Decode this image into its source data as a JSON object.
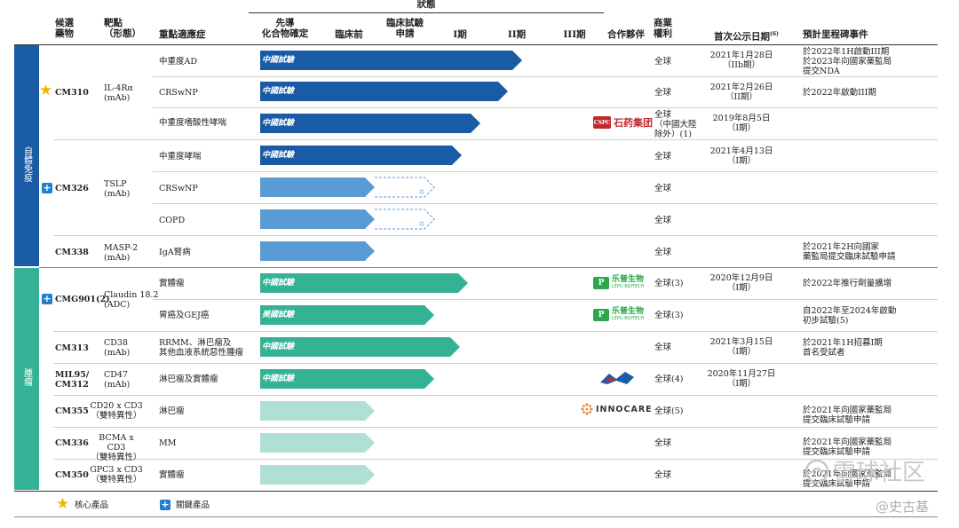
{
  "header": {
    "status": "狀態",
    "candidate": "候選\n藥物",
    "target": "靶點\n（形態）",
    "indication": "重點適應症",
    "lead": "先導\n化合物確定",
    "preclinical": "臨床前",
    "ind": "臨床試驗\n申請",
    "phase1": "I期",
    "phase2": "II期",
    "phase3": "III期",
    "partner": "合作夥伴",
    "rights": "商業\n權利",
    "first_date": "首次公示日期",
    "first_date_note": "(6)",
    "milestone": "預計里程碑事件"
  },
  "sections": [
    {
      "label": "自體免疫",
      "color": "#1a5ba6"
    },
    {
      "label": "腫瘤",
      "color": "#35b295"
    }
  ],
  "rows": [
    {
      "candidate": "",
      "target": "",
      "indication": "中重度AD",
      "bar_label": "中國試驗",
      "rights": "全球",
      "date": "2021年1月28日\n（IIb期）",
      "milestone": "於2022年1H啟動III期\n於2023年向國家藥監局\n提交NDA"
    },
    {
      "candidate": "CM310",
      "target": "IL-4Rα\n(mAb)",
      "indication": "CRSwNP",
      "bar_label": "中國試驗",
      "rights": "全球",
      "date": "2021年2月26日\n（II期）",
      "milestone": "於2022年啟動III期"
    },
    {
      "candidate": "",
      "target": "",
      "indication": "中重度嗜酸性哮喘",
      "bar_label": "中國試驗",
      "rights": "全球\n（中國大陸\n除外）(1)",
      "date": "2019年8月5日\n（I期）",
      "milestone": ""
    },
    {
      "candidate": "",
      "target": "",
      "indication": "中重度哮喘",
      "bar_label": "中國試驗",
      "rights": "全球",
      "date": "2021年4月13日\n（I期）",
      "milestone": ""
    },
    {
      "candidate": "CM326",
      "target": "TSLP\n(mAb)",
      "indication": "CRSwNP",
      "bar_label": "",
      "rights": "全球",
      "date": "",
      "milestone": ""
    },
    {
      "candidate": "",
      "target": "",
      "indication": "COPD",
      "bar_label": "",
      "rights": "全球",
      "date": "",
      "milestone": ""
    },
    {
      "candidate": "CM338",
      "target": "MASP-2\n(mAb)",
      "indication": "IgA腎病",
      "bar_label": "",
      "rights": "全球",
      "date": "",
      "milestone": "於2021年2H向國家\n藥監局提交臨床試驗申請"
    },
    {
      "candidate": "",
      "target": "",
      "indication": "實體瘤",
      "bar_label": "中國試驗",
      "rights": "全球(3)",
      "date": "2020年12月9日\n（I期）",
      "milestone": "於2022年推行劑量擴增"
    },
    {
      "candidate": "CMG901(2)",
      "target": "Claudin 18.2\n(ADC)",
      "indication": "胃癌及GEJ癌",
      "bar_label": "美國試驗",
      "rights": "全球(3)",
      "date": "",
      "milestone": "自2022年至2024年啟動\n初步試驗(5)"
    },
    {
      "candidate": "CM313",
      "target": "CD38\n(mAb)",
      "indication": "RRMM、淋巴瘤及\n其他血液系統惡性腫瘤",
      "bar_label": "中國試驗",
      "rights": "全球",
      "date": "2021年3月15日\n（I期）",
      "milestone": "於2021年1H招募I期\n首名受試者"
    },
    {
      "candidate": "MIL95/\nCM312",
      "target": "CD47\n(mAb)",
      "indication": "淋巴瘤及實體瘤",
      "bar_label": "中國試驗",
      "rights": "全球(4)",
      "date": "2020年11月27日\n（I期）",
      "milestone": ""
    },
    {
      "candidate": "CM355",
      "target": "CD20 x CD3\n（雙特異性）",
      "indication": "淋巴瘤",
      "bar_label": "",
      "rights": "全球(5)",
      "date": "",
      "milestone": "於2021年向國家藥監局\n提交臨床試驗申請"
    },
    {
      "candidate": "CM336",
      "target": "BCMA x CD3\n（雙特異性）",
      "indication": "MM",
      "bar_label": "",
      "rights": "全球",
      "date": "",
      "milestone": "於2021年向國家藥監局\n提交臨床試驗申請"
    },
    {
      "candidate": "CM350",
      "target": "GPC3 x CD3\n（雙特異性）",
      "indication": "實體瘤",
      "bar_label": "",
      "rights": "全球",
      "date": "",
      "milestone": "於2021年向國家藥監局\n提交臨床試驗申請"
    }
  ],
  "bar_colors": {
    "dark_blue": "#1a5ba6",
    "light_blue": "#5b9bd5",
    "green": "#35b295",
    "light_green": "#aee0d3"
  },
  "partners": {
    "cspc": {
      "abbr": "CSPC",
      "name": "石药集团",
      "color": "#c0282d"
    },
    "leads1": {
      "name": "乐普生物",
      "sub": "LEPU BIOTECH",
      "color": "#2aa84a"
    },
    "leads2": {
      "name": "乐普生物",
      "sub": "LEPU BIOTECH",
      "color": "#2aa84a"
    },
    "tianguang": {
      "name": "天广实",
      "color": "#1a5ba6"
    },
    "innocare": {
      "name": "INNOCARE",
      "color": "#333333"
    }
  },
  "legend": {
    "core": "核心產品",
    "key": "關鍵產品"
  },
  "watermark": {
    "community": "雪球社区",
    "author": "@史古基"
  }
}
